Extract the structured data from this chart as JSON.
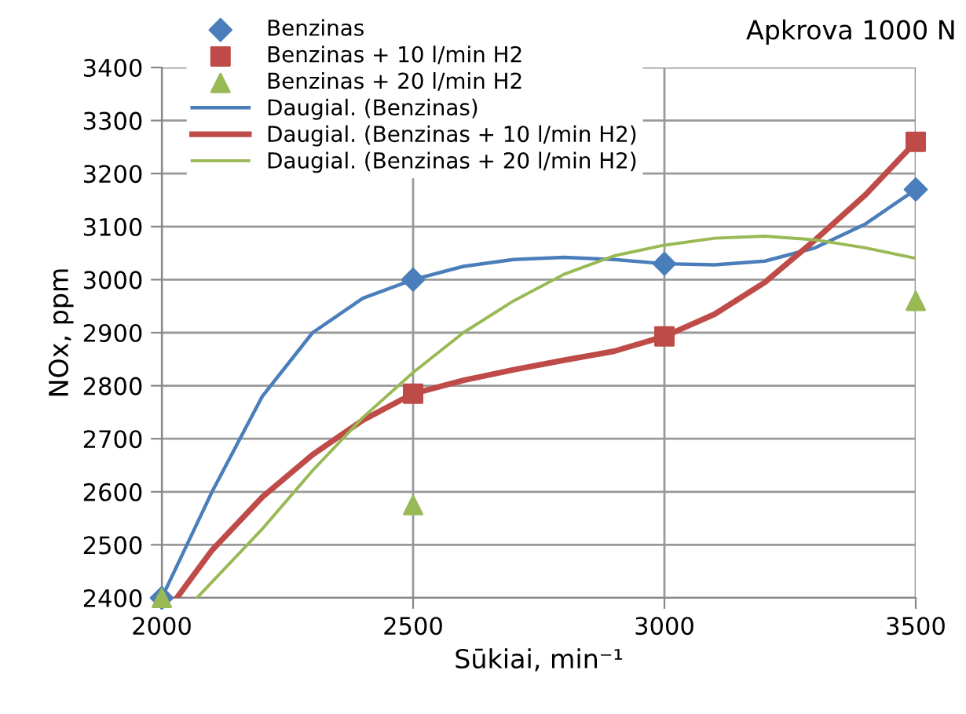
{
  "chart_data": {
    "type": "scatter",
    "title": "Apkrova 1000 N",
    "xlabel": "Sūkiai, min⁻¹",
    "ylabel": "NOx, ppm",
    "xlim": [
      2000,
      3500
    ],
    "xticks": [
      2000,
      2500,
      3000,
      3500
    ],
    "ylim": [
      2400,
      3400
    ],
    "yticks": [
      2400,
      2500,
      2600,
      2700,
      2800,
      2900,
      3000,
      3100,
      3200,
      3300,
      3400
    ],
    "grid": true,
    "legend": "top left",
    "series": [
      {
        "name": "Benzinas",
        "marker": "diamond",
        "color": "#4a7ebb",
        "x": [
          2000,
          2500,
          3000,
          3500
        ],
        "values": [
          2400,
          3000,
          3030,
          3170
        ]
      },
      {
        "name": "Benzinas + 10 l/min H2",
        "marker": "square",
        "color": "#be4b48",
        "x": [
          2500,
          3000,
          3500
        ],
        "values": [
          2785,
          2893,
          3260
        ]
      },
      {
        "name": "Benzinas + 20 l/min H2",
        "marker": "triangle",
        "color": "#98b954",
        "x": [
          2000,
          2500,
          3500
        ],
        "values": [
          2400,
          2575,
          2960
        ]
      },
      {
        "name": "Daugial. (Benzinas)",
        "type": "line",
        "marker": "none",
        "color": "#4a7ebb",
        "x": [
          2000,
          2100,
          2200,
          2300,
          2400,
          2500,
          2600,
          2700,
          2800,
          2900,
          3000,
          3100,
          3200,
          3300,
          3400,
          3500
        ],
        "values": [
          2400,
          2600,
          2780,
          2900,
          2965,
          3000,
          3025,
          3038,
          3042,
          3038,
          3030,
          3028,
          3035,
          3060,
          3105,
          3170
        ]
      },
      {
        "name": "Daugial. (Benzinas + 10 l/min H2)",
        "type": "line",
        "marker": "none",
        "color": "#be4b48",
        "x": [
          2030,
          2100,
          2200,
          2300,
          2400,
          2500,
          2600,
          2700,
          2800,
          2900,
          3000,
          3100,
          3200,
          3300,
          3400,
          3500
        ],
        "values": [
          2400,
          2490,
          2590,
          2670,
          2735,
          2785,
          2810,
          2830,
          2848,
          2865,
          2893,
          2935,
          2995,
          3075,
          3160,
          3260
        ]
      },
      {
        "name": "Daugial. (Benzinas + 20 l/min H2)",
        "type": "line",
        "marker": "none",
        "color": "#98b954",
        "x": [
          2070,
          2200,
          2300,
          2400,
          2500,
          2600,
          2700,
          2800,
          2900,
          3000,
          3100,
          3200,
          3300,
          3400,
          3500
        ],
        "values": [
          2400,
          2530,
          2640,
          2740,
          2825,
          2900,
          2960,
          3010,
          3045,
          3065,
          3078,
          3082,
          3075,
          3060,
          3040
        ]
      }
    ]
  }
}
